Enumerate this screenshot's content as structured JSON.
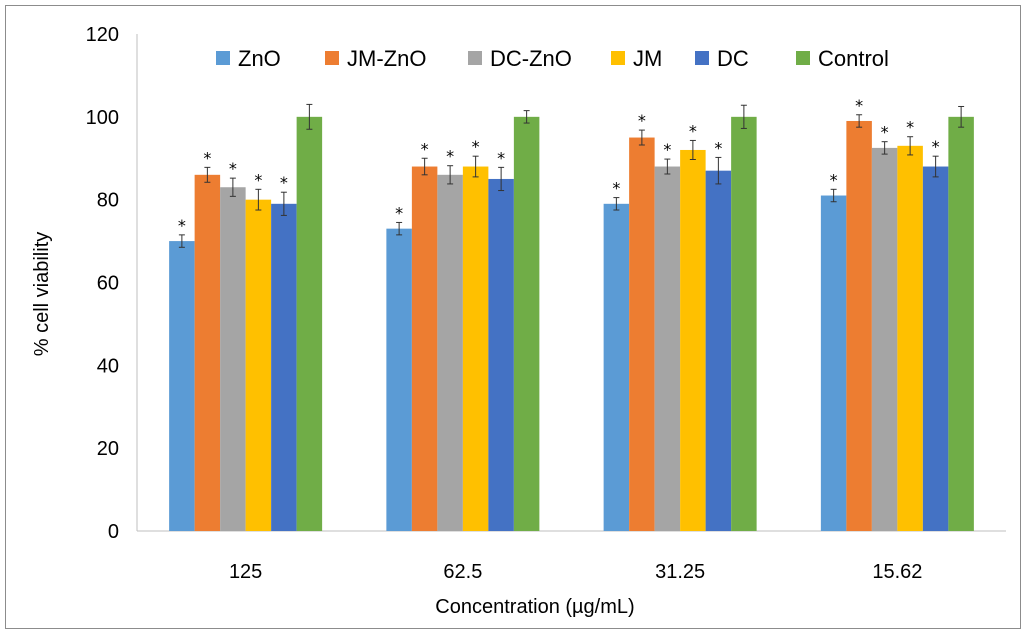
{
  "chart_data": {
    "type": "bar",
    "title": "",
    "xlabel": "Concentration (µg/mL)",
    "ylabel": "% cell viability",
    "ylim": [
      0,
      120
    ],
    "yticks": [
      0,
      20,
      40,
      60,
      80,
      100,
      120
    ],
    "categories": [
      "125",
      "62.5",
      "31.25",
      "15.62"
    ],
    "legend_position": "top",
    "grid": false,
    "significance_marker": "*",
    "series": [
      {
        "name": "ZnO",
        "color": "#5B9BD5",
        "values": [
          70,
          73,
          79,
          81
        ],
        "errors": [
          1.5,
          1.5,
          1.5,
          1.5
        ],
        "significant": [
          true,
          true,
          true,
          true
        ]
      },
      {
        "name": "JM-ZnO",
        "color": "#ED7D31",
        "values": [
          86,
          88,
          95,
          99
        ],
        "errors": [
          1.8,
          2.0,
          1.8,
          1.5
        ],
        "significant": [
          true,
          true,
          true,
          true
        ]
      },
      {
        "name": "DC-ZnO",
        "color": "#A5A5A5",
        "values": [
          83,
          86,
          88,
          92.5
        ],
        "errors": [
          2.2,
          2.2,
          1.8,
          1.5
        ],
        "significant": [
          true,
          true,
          true,
          true
        ]
      },
      {
        "name": "JM",
        "color": "#FFC000",
        "values": [
          80,
          88,
          92,
          93
        ],
        "errors": [
          2.5,
          2.5,
          2.3,
          2.2
        ],
        "significant": [
          true,
          true,
          true,
          true
        ]
      },
      {
        "name": "DC",
        "color": "#4472C4",
        "values": [
          79,
          85,
          87,
          88
        ],
        "errors": [
          2.8,
          2.8,
          3.2,
          2.5
        ],
        "significant": [
          true,
          true,
          true,
          true
        ]
      },
      {
        "name": "Control",
        "color": "#70AD47",
        "values": [
          100,
          100,
          100,
          100
        ],
        "errors": [
          3.0,
          1.5,
          2.8,
          2.5
        ],
        "significant": [
          false,
          false,
          false,
          false
        ]
      }
    ]
  }
}
